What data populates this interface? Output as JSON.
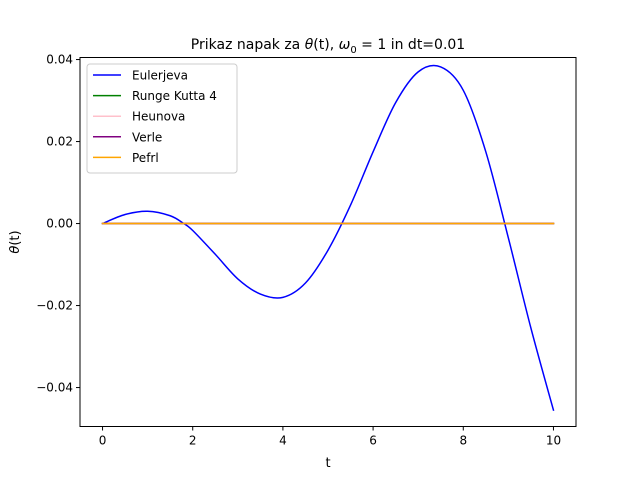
{
  "chart_data": {
    "type": "line",
    "title": "Prikaz napak za θ(t), ω₀ = 1 in dt=0.01",
    "title_parts": {
      "prefix": "Prikaz napak za ",
      "theta": "θ",
      "theta_args": "(t), ",
      "omega": "ω",
      "omega_sub": "0",
      "omega_rest": " = 1 in dt=0.01"
    },
    "xlabel": "t",
    "ylabel": "θ(t)",
    "ylabel_parts": {
      "theta": "θ",
      "args": "(t)"
    },
    "xlim": [
      -0.5,
      10.5
    ],
    "ylim": [
      -0.0495,
      0.0405
    ],
    "x_ticks": [
      0,
      2,
      4,
      6,
      8,
      10
    ],
    "x_tick_labels": [
      "0",
      "2",
      "4",
      "6",
      "8",
      "10"
    ],
    "y_ticks": [
      -0.04,
      -0.02,
      0.0,
      0.02,
      0.04
    ],
    "y_tick_labels": [
      "−0.04",
      "−0.02",
      "0.00",
      "0.02",
      "0.04"
    ],
    "grid": false,
    "legend_position": "top-left",
    "series": [
      {
        "name": "Eulerjeva",
        "color": "#0000ff",
        "x": [
          0,
          0.5,
          1,
          1.5,
          1.8,
          2,
          2.5,
          3,
          3.5,
          4,
          4.5,
          5,
          5.5,
          6,
          6.5,
          7,
          7.5,
          8,
          8.5,
          9,
          9.5,
          10
        ],
        "y": [
          0,
          0.0022,
          0.003,
          0.0019,
          0.0,
          -0.0017,
          -0.0075,
          -0.0135,
          -0.0172,
          -0.018,
          -0.0145,
          -0.0065,
          0.0045,
          0.0175,
          0.0295,
          0.037,
          0.0382,
          0.0325,
          0.0175,
          -0.0035,
          -0.0255,
          -0.0455
        ]
      },
      {
        "name": "Runge Kutta 4",
        "color": "#008000",
        "x": [
          0,
          10
        ],
        "y": [
          0.0,
          0.0
        ]
      },
      {
        "name": "Heunova",
        "color": "#ffc0cb",
        "x": [
          0,
          10
        ],
        "y": [
          0.0,
          0.0
        ]
      },
      {
        "name": "Verle",
        "color": "#800080",
        "x": [
          0,
          10
        ],
        "y": [
          0.0,
          0.0
        ]
      },
      {
        "name": "Pefrl",
        "color": "#ffa500",
        "x": [
          0,
          10
        ],
        "y": [
          0.0,
          0.0
        ]
      }
    ]
  }
}
